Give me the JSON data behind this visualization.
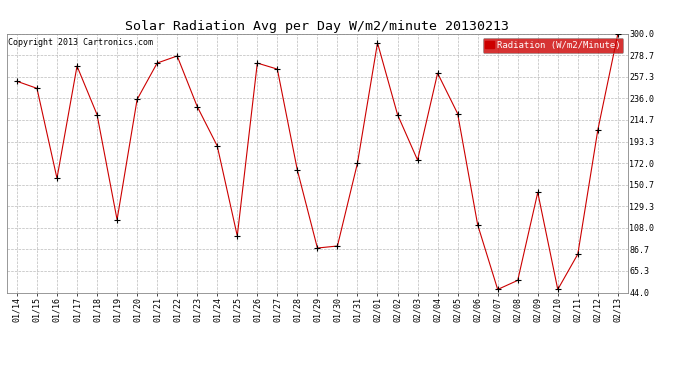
{
  "title": "Solar Radiation Avg per Day W/m2/minute 20130213",
  "copyright": "Copyright 2013 Cartronics.com",
  "legend_label": "Radiation (W/m2/Minute)",
  "dates": [
    "01/14",
    "01/15",
    "01/16",
    "01/17",
    "01/18",
    "01/19",
    "01/20",
    "01/21",
    "01/22",
    "01/23",
    "01/24",
    "01/25",
    "01/26",
    "01/27",
    "01/28",
    "01/29",
    "01/30",
    "01/31",
    "02/01",
    "02/02",
    "02/03",
    "02/04",
    "02/05",
    "02/06",
    "02/07",
    "02/08",
    "02/09",
    "02/10",
    "02/11",
    "02/12",
    "02/13"
  ],
  "values": [
    253.0,
    246.0,
    157.0,
    268.0,
    220.0,
    116.0,
    235.0,
    271.0,
    278.0,
    228.0,
    189.0,
    100.0,
    271.0,
    265.0,
    165.0,
    88.0,
    90.0,
    172.0,
    291.0,
    220.0,
    175.0,
    261.0,
    221.0,
    111.0,
    47.0,
    56.0,
    143.0,
    47.0,
    82.0,
    205.0,
    300.0
  ],
  "line_color": "#cc0000",
  "marker_color": "#000000",
  "background_color": "#ffffff",
  "grid_color": "#bbbbbb",
  "ylim": [
    44.0,
    300.0
  ],
  "yticks": [
    44.0,
    65.3,
    86.7,
    108.0,
    129.3,
    150.7,
    172.0,
    193.3,
    214.7,
    236.0,
    257.3,
    278.7,
    300.0
  ],
  "title_fontsize": 9.5,
  "copyright_fontsize": 6,
  "legend_fontsize": 6.5,
  "tick_fontsize": 6
}
